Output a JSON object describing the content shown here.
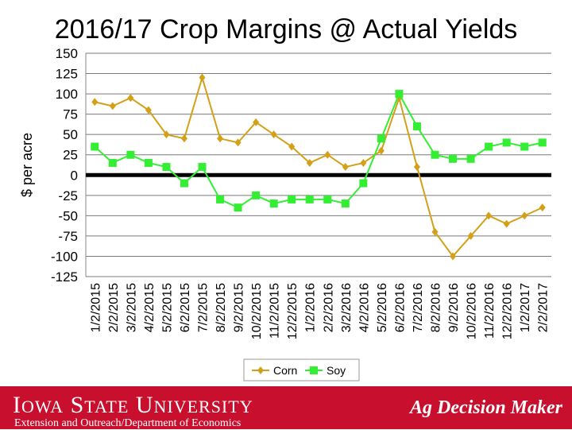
{
  "title": "2016/17 Crop Margins @ Actual Yields",
  "footer": {
    "university": "Iowa State University",
    "department": "Extension and Outreach/Department of Economics",
    "brand": "Ag Decision Maker"
  },
  "colors": {
    "corn": "#d4a017",
    "soy": "#33ee33",
    "zero_line": "#000000",
    "footer_bg": "#c8102e"
  },
  "chart_data": {
    "type": "line",
    "title": "2016/17 Crop Margins @ Actual Yields",
    "xlabel": "",
    "ylabel": "$ per acre",
    "ylim": [
      -125,
      150
    ],
    "yticks": [
      150,
      125,
      100,
      75,
      50,
      25,
      0,
      -25,
      -50,
      -75,
      -100,
      -125
    ],
    "grid": true,
    "legend": "bottom",
    "x": [
      "1/2/2015",
      "2/2/2015",
      "3/2/2015",
      "4/2/2015",
      "5/2/2015",
      "6/2/2015",
      "7/2/2015",
      "8/2/2015",
      "9/2/2015",
      "10/2/2015",
      "11/2/2015",
      "12/2/2015",
      "1/2/2016",
      "2/2/2016",
      "3/2/2016",
      "4/2/2016",
      "5/2/2016",
      "6/2/2016",
      "7/2/2016",
      "8/2/2016",
      "9/2/2016",
      "10/2/2016",
      "11/2/2016",
      "12/2/2016",
      "1/2/2017",
      "2/2/2017"
    ],
    "series": [
      {
        "name": "Corn",
        "values": [
          90,
          85,
          95,
          80,
          50,
          45,
          120,
          45,
          40,
          65,
          50,
          35,
          15,
          25,
          10,
          15,
          30,
          95,
          10,
          -70,
          -100,
          -75,
          -50,
          -60,
          -50,
          -40
        ]
      },
      {
        "name": "Soy",
        "values": [
          35,
          15,
          25,
          15,
          10,
          -10,
          10,
          -30,
          -40,
          -25,
          -35,
          -30,
          -30,
          -30,
          -35,
          -10,
          45,
          100,
          60,
          25,
          20,
          20,
          35,
          40,
          35,
          40
        ]
      }
    ]
  }
}
